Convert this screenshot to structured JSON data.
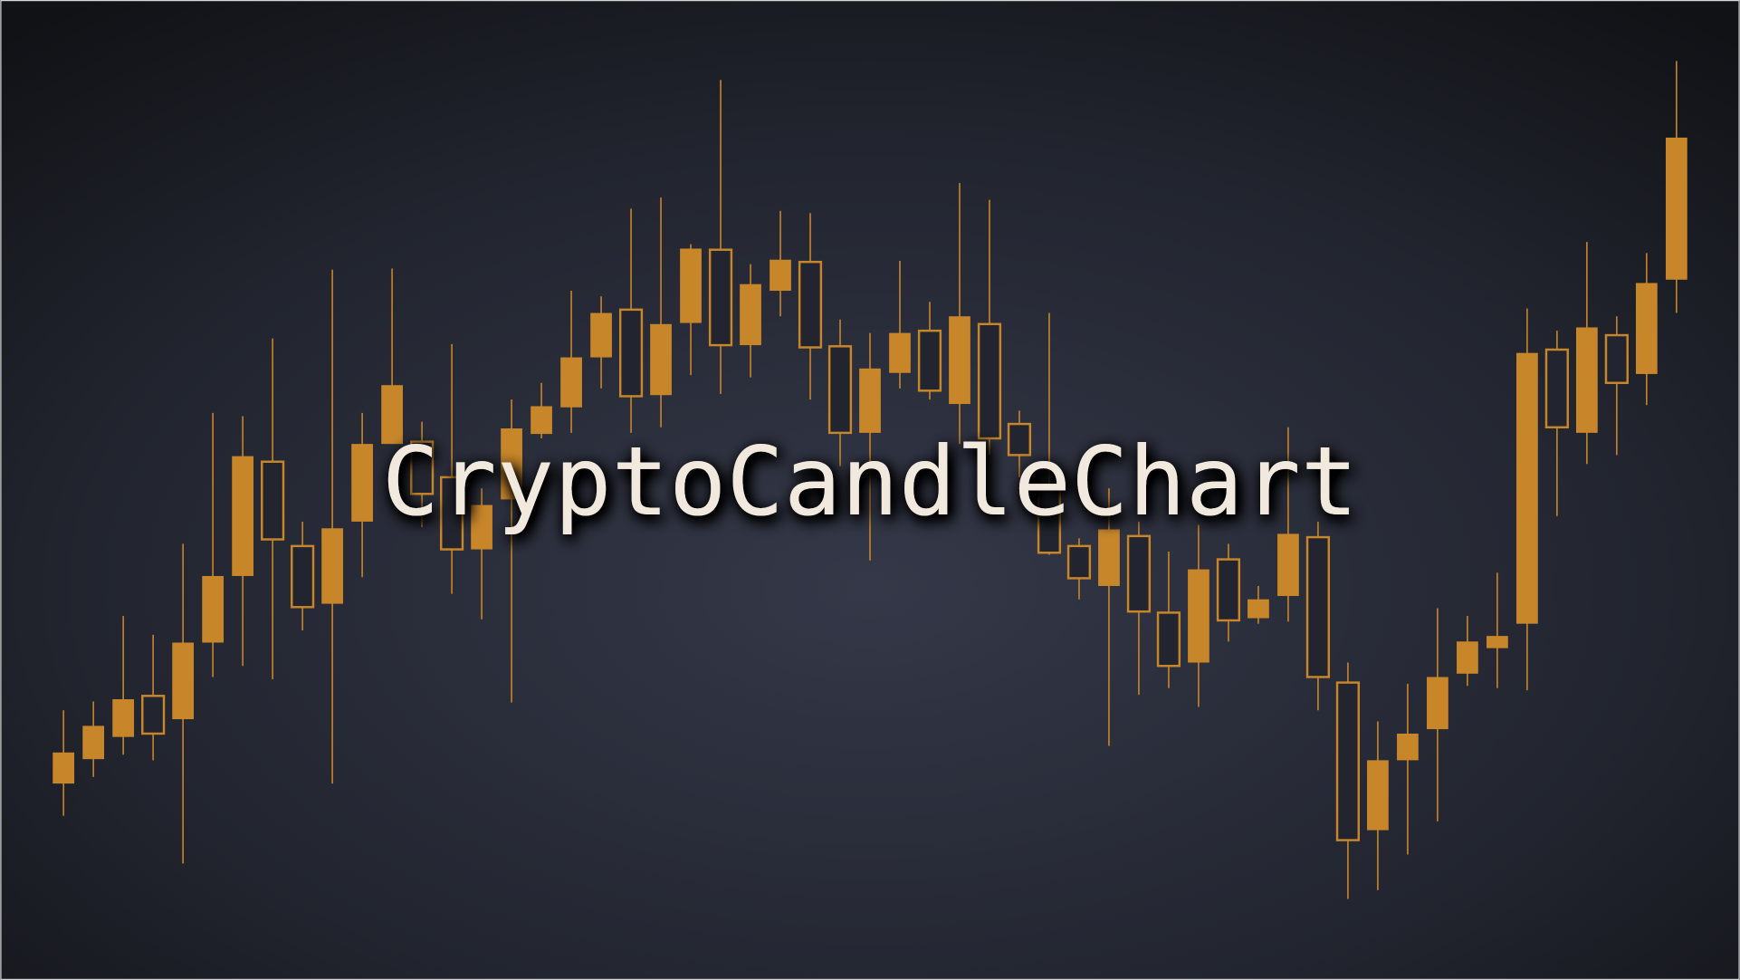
{
  "chart_data": {
    "type": "candlestick",
    "title": "CryptoCandleChart",
    "color": "#c8862a",
    "ylim": [
      0,
      883
    ],
    "series": [
      {
        "open": [
          205,
          229,
          253,
          222,
          304,
          364,
          472,
          397,
          336,
          407,
          483,
          536,
          438,
          388,
          428,
          497,
          517,
          561,
          601,
          526,
          591,
          659,
          572,
          627,
          649,
          570,
          493,
          551,
          583,
          531,
          598,
          488,
          473,
          385,
          362,
          406,
          332,
          283,
          370,
          324,
          343,
          402,
          273,
          126,
          198,
          222,
          273,
          305,
          310,
          565,
          498,
          588,
          538,
          628,
          759
        ],
        "high": [
          243,
          251,
          328,
          311,
          393,
          511,
          508,
          578,
          413,
          640,
          511,
          641,
          503,
          573,
          443,
          523,
          538,
          621,
          616,
          695,
          705,
          663,
          811,
          645,
          693,
          691,
          595,
          583,
          648,
          611,
          718,
          703,
          513,
          601,
          398,
          443,
          413,
          386,
          410,
          393,
          355,
          498,
          413,
          286,
          233,
          267,
          335,
          328,
          367,
          605,
          585,
          665,
          598,
          655,
          828
        ],
        "low": [
          148,
          183,
          203,
          198,
          105,
          273,
          283,
          271,
          315,
          177,
          363,
          483,
          408,
          348,
          325,
          250,
          488,
          493,
          533,
          493,
          498,
          545,
          528,
          543,
          598,
          523,
          463,
          378,
          533,
          523,
          483,
          473,
          453,
          383,
          343,
          211,
          257,
          263,
          246,
          305,
          321,
          323,
          243,
          73,
          81,
          113,
          143,
          265,
          263,
          261,
          418,
          465,
          473,
          518,
          601
        ],
        "close": [
          177,
          199,
          219,
          256,
          235,
          304,
          364,
          467,
          391,
          339,
          413,
          483,
          485,
          453,
          388,
          433,
          492,
          516,
          561,
          604,
          527,
          592,
          658,
          572,
          621,
          647,
          571,
          493,
          547,
          585,
          519,
          591,
          501,
          443,
          391,
          355,
          400,
          331,
          286,
          379,
          326,
          346,
          399,
          268,
          135,
          198,
          226,
          276,
          299,
          321,
          568,
          493,
          581,
          546,
          631
        ]
      }
    ]
  }
}
